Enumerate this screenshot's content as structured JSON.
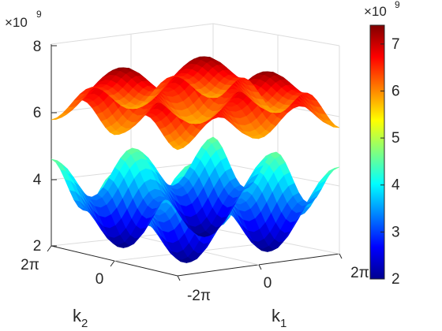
{
  "chart_data": {
    "type": "surface",
    "title": "",
    "xlabel": "k",
    "xlabel_sub": "1",
    "ylabel": "k",
    "ylabel_sub": "2",
    "zlabel": "",
    "x_ticks": [
      "-2π",
      "0",
      "2π"
    ],
    "y_ticks": [
      "2π",
      "0"
    ],
    "z_ticks": [
      "2",
      "4",
      "6",
      "8"
    ],
    "z_exponent_prefix": "×10",
    "z_exponent_power": "9",
    "xlim": [
      "-2π",
      "2π"
    ],
    "ylim": [
      "-2π",
      "2π"
    ],
    "zlim": [
      2000000000.0,
      8000000000.0
    ],
    "grid": true,
    "colormap": "jet",
    "colorbar": {
      "ticks": [
        "2",
        "3",
        "4",
        "5",
        "6",
        "7"
      ],
      "range": [
        2000000000.0,
        7400000000.0
      ],
      "exponent_prefix": "×10",
      "exponent_power": "9"
    },
    "series": [
      {
        "band": "upper",
        "min": 5600000000.0,
        "max": 7400000000.0
      },
      {
        "band": "lower",
        "min": 2000000000.0,
        "max": 4600000000.0
      }
    ]
  }
}
